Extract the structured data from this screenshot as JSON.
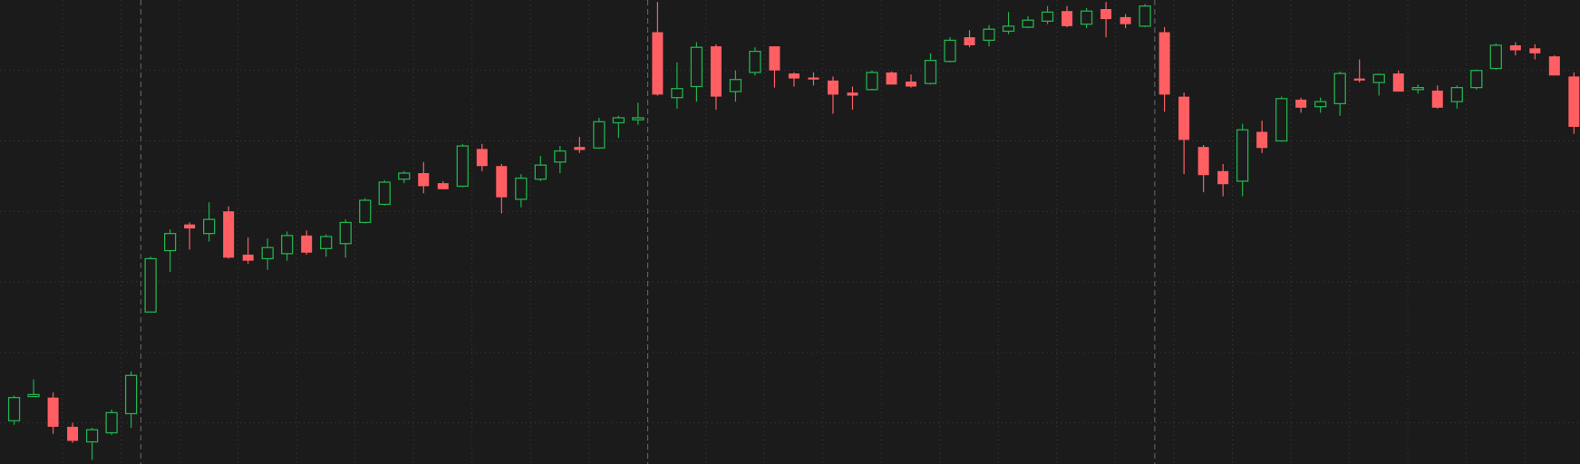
{
  "chart_data": {
    "type": "candlestick",
    "up_color": "#22b14c",
    "down_color": "#ff5f63",
    "background": "#1b1b1c",
    "ylim": [
      0,
      461
    ],
    "yticks": [
      41,
      111,
      181,
      251,
      321,
      391
    ],
    "grid": true,
    "session_starts": [
      7,
      33,
      59
    ],
    "open": [
      43,
      67,
      66,
      37,
      22,
      31,
      50,
      151,
      212,
      238,
      229,
      251,
      208,
      204,
      209,
      227,
      214,
      219,
      240,
      258,
      283,
      289,
      279,
      276,
      313,
      296,
      263,
      283,
      300,
      315,
      314,
      339,
      342,
      429,
      364,
      375,
      415,
      370,
      389,
      415,
      388,
      384,
      381,
      369,
      372,
      389,
      380,
      378,
      400,
      424,
      421,
      430,
      434,
      440,
      450,
      437,
      452,
      444,
      435,
      429,
      365,
      315,
      291,
      281,
      330,
      321,
      362,
      355,
      358,
      383,
      379,
      388,
      372,
      371,
      360,
      374,
      393,
      416,
      413,
      405,
      385
    ],
    "high": [
      68,
      84,
      71,
      41,
      36,
      54,
      92,
      206,
      233,
      240,
      260,
      256,
      225,
      224,
      231,
      232,
      228,
      243,
      264,
      282,
      291,
      300,
      281,
      318,
      318,
      298,
      288,
      306,
      316,
      325,
      344,
      346,
      359,
      459,
      399,
      419,
      417,
      391,
      414,
      415,
      389,
      389,
      385,
      375,
      391,
      390,
      387,
      408,
      424,
      431,
      436,
      449,
      445,
      455,
      455,
      453,
      459,
      447,
      457,
      434,
      369,
      317,
      298,
      338,
      341,
      365,
      364,
      364,
      390,
      402,
      388,
      391,
      377,
      376,
      376,
      392,
      418,
      419,
      417,
      406,
      389
    ],
    "low": [
      39,
      67,
      30,
      21,
      4,
      29,
      36,
      151,
      191,
      213,
      221,
      204,
      199,
      193,
      202,
      208,
      206,
      205,
      239,
      257,
      279,
      269,
      273,
      275,
      291,
      249,
      255,
      281,
      289,
      309,
      313,
      324,
      337,
      366,
      353,
      360,
      352,
      360,
      386,
      374,
      375,
      376,
      348,
      352,
      371,
      377,
      374,
      377,
      399,
      414,
      415,
      427,
      433,
      437,
      434,
      433,
      424,
      433,
      434,
      350,
      288,
      270,
      266,
      266,
      309,
      320,
      349,
      349,
      346,
      379,
      366,
      370,
      368,
      353,
      353,
      372,
      392,
      406,
      402,
      386,
      328
    ],
    "close": [
      66,
      69,
      37,
      23,
      34,
      51,
      88,
      204,
      229,
      234,
      243,
      205,
      202,
      215,
      227,
      210,
      226,
      240,
      262,
      280,
      289,
      276,
      273,
      316,
      296,
      265,
      284,
      297,
      311,
      312,
      340,
      344,
      344,
      367,
      373,
      414,
      365,
      382,
      410,
      391,
      383,
      382,
      367,
      366,
      389,
      377,
      375,
      401,
      421,
      416,
      432,
      435,
      441,
      449,
      435,
      450,
      442,
      437,
      455,
      367,
      322,
      287,
      278,
      332,
      314,
      363,
      354,
      360,
      388,
      381,
      387,
      370,
      374,
      354,
      374,
      391,
      416,
      411,
      408,
      386,
      335
    ]
  }
}
